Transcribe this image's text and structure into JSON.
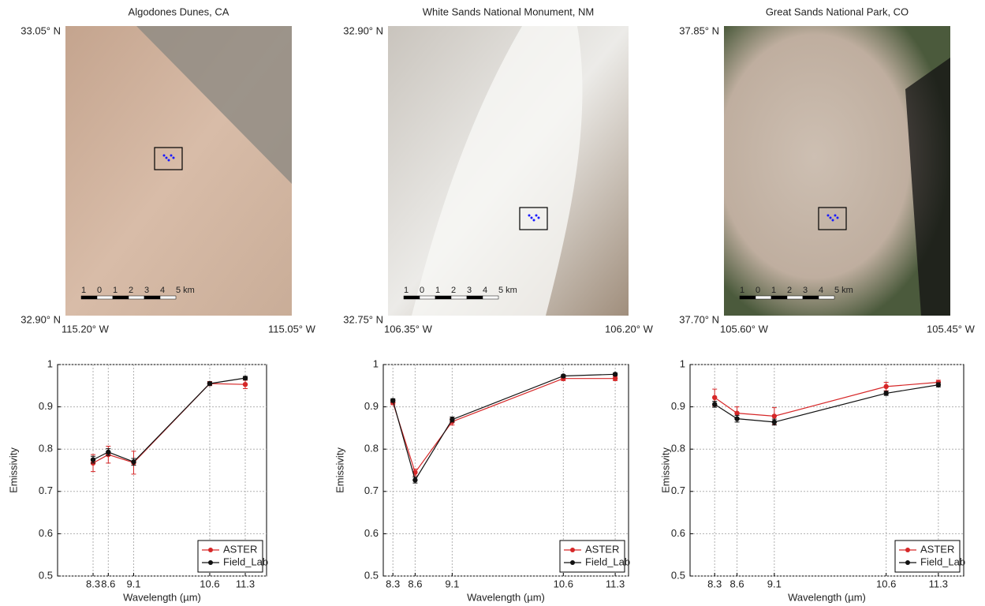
{
  "maps": [
    {
      "title": "Algodones Dunes, CA",
      "lat_top": "33.05° N",
      "lat_bottom": "32.90° N",
      "lon_left": "115.20° W",
      "lon_right": "115.05° W",
      "scale_labels": [
        "1",
        "0",
        "1",
        "2",
        "3",
        "4",
        "5 km"
      ]
    },
    {
      "title": "White Sands National Monument, NM",
      "lat_top": "32.90° N",
      "lat_bottom": "32.75° N",
      "lon_left": "106.35° W",
      "lon_right": "106.20° W",
      "scale_labels": [
        "1",
        "0",
        "1",
        "2",
        "3",
        "4",
        "5 km"
      ]
    },
    {
      "title": "Great Sands National Park, CO",
      "lat_top": "37.85° N",
      "lat_bottom": "37.70° N",
      "lon_left": "105.60° W",
      "lon_right": "105.45° W",
      "scale_labels": [
        "1",
        "0",
        "1",
        "2",
        "3",
        "4",
        "5 km"
      ]
    }
  ],
  "chart_data": [
    {
      "type": "line",
      "x_label": "Wavelength (µm)",
      "y_label": "Emissivity",
      "x": [
        8.3,
        8.6,
        9.1,
        10.6,
        11.3
      ],
      "xlim": [
        7.6,
        11.72
      ],
      "xticks": [
        8.3,
        8.6,
        9.1,
        10.6,
        11.3
      ],
      "ylim": [
        0.5,
        1
      ],
      "yticks": [
        0.5,
        0.6,
        0.7,
        0.8,
        0.9,
        1
      ],
      "grid": true,
      "legend": "bottom-right",
      "series": [
        {
          "name": "ASTER",
          "color": "#d62728",
          "values": [
            0.767,
            0.787,
            0.768,
            0.955,
            0.953
          ],
          "errors": [
            0.02,
            0.02,
            0.027,
            0.005,
            0.01
          ]
        },
        {
          "name": "Field_Lab",
          "color": "#111111",
          "values": [
            0.775,
            0.793,
            0.77,
            0.955,
            0.968
          ],
          "errors": [
            0.008,
            0.008,
            0.008,
            0.004,
            0.004
          ]
        }
      ]
    },
    {
      "type": "line",
      "x_label": "Wavelength (µm)",
      "y_label": "Emissivity",
      "x": [
        8.3,
        8.6,
        9.1,
        10.6,
        11.3
      ],
      "xlim": [
        8.17,
        11.48
      ],
      "xticks": [
        8.3,
        8.6,
        9.1,
        10.6,
        11.3
      ],
      "ylim": [
        0.5,
        1
      ],
      "yticks": [
        0.5,
        0.6,
        0.7,
        0.8,
        0.9,
        1
      ],
      "grid": true,
      "legend": "bottom-right",
      "series": [
        {
          "name": "ASTER",
          "color": "#d62728",
          "values": [
            0.91,
            0.745,
            0.865,
            0.967,
            0.967
          ],
          "errors": [
            0.005,
            0.008,
            0.008,
            0.005,
            0.005
          ]
        },
        {
          "name": "Field_Lab",
          "color": "#111111",
          "values": [
            0.915,
            0.727,
            0.87,
            0.973,
            0.977
          ],
          "errors": [
            0.004,
            0.007,
            0.006,
            0.003,
            0.003
          ]
        }
      ]
    },
    {
      "type": "line",
      "x_label": "Wavelength (µm)",
      "y_label": "Emissivity",
      "x": [
        8.3,
        8.6,
        9.1,
        10.6,
        11.3
      ],
      "xlim": [
        7.97,
        11.64
      ],
      "xticks": [
        8.3,
        8.6,
        9.1,
        10.6,
        11.3
      ],
      "ylim": [
        0.5,
        1
      ],
      "yticks": [
        0.5,
        0.6,
        0.7,
        0.8,
        0.9,
        1
      ],
      "grid": true,
      "legend": "bottom-right",
      "series": [
        {
          "name": "ASTER",
          "color": "#d62728",
          "values": [
            0.922,
            0.885,
            0.878,
            0.948,
            0.958
          ],
          "errors": [
            0.02,
            0.015,
            0.02,
            0.01,
            0.005
          ]
        },
        {
          "name": "Field_Lab",
          "color": "#111111",
          "values": [
            0.906,
            0.872,
            0.864,
            0.932,
            0.952
          ],
          "errors": [
            0.007,
            0.008,
            0.007,
            0.005,
            0.005
          ]
        }
      ]
    }
  ]
}
